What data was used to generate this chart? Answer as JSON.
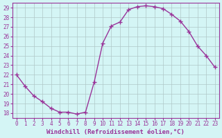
{
  "x": [
    0,
    1,
    2,
    3,
    4,
    5,
    6,
    7,
    8,
    9,
    10,
    11,
    12,
    13,
    14,
    15,
    16,
    17,
    18,
    19,
    20,
    21,
    22,
    23
  ],
  "y": [
    22,
    20.8,
    19.8,
    19.2,
    18.5,
    18.1,
    18.1,
    17.9,
    18.1,
    21.2,
    25.3,
    27.1,
    27.5,
    28.8,
    29.1,
    29.2,
    29.1,
    28.9,
    28.3,
    27.6,
    26.5,
    25.0,
    24.0,
    22.8
  ],
  "line_color": "#993399",
  "marker": "+",
  "markersize": 4,
  "linewidth": 1.0,
  "markeredgewidth": 1.0,
  "xlabel": "Windchill (Refroidissement éolien,°C)",
  "xlabel_fontsize": 6.5,
  "ylim": [
    17.5,
    29.5
  ],
  "xlim": [
    -0.5,
    23.5
  ],
  "yticks": [
    18,
    19,
    20,
    21,
    22,
    23,
    24,
    25,
    26,
    27,
    28,
    29
  ],
  "xticks": [
    0,
    1,
    2,
    3,
    4,
    5,
    6,
    7,
    8,
    9,
    10,
    11,
    12,
    13,
    14,
    15,
    16,
    17,
    18,
    19,
    20,
    21,
    22,
    23
  ],
  "background_color": "#d4f5f5",
  "grid_color": "#b0c8c8",
  "tick_fontsize": 5.5,
  "spine_color": "#993399",
  "spine_linewidth": 0.8
}
